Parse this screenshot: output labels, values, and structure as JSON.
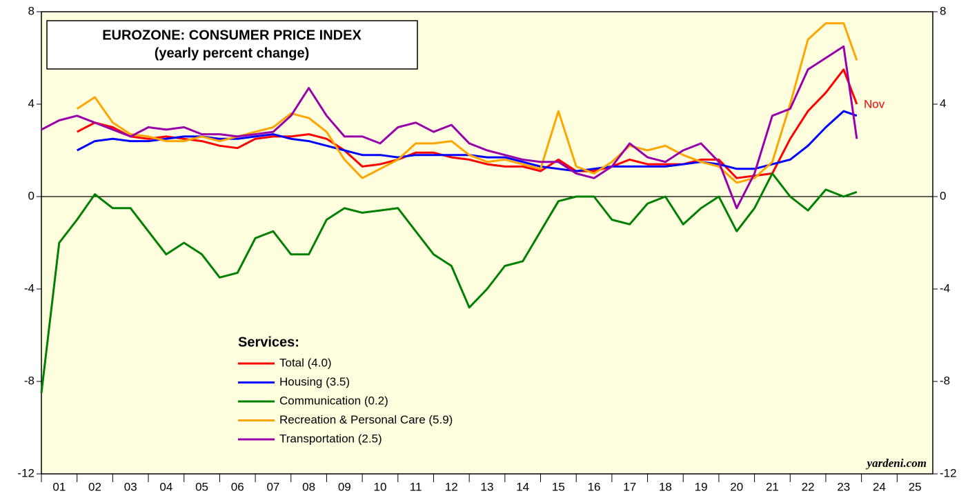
{
  "chart_data": {
    "type": "line",
    "title": "EUROZONE: CONSUMER PRICE INDEX",
    "subtitle": "(yearly percent change)",
    "legend_title": "Services:",
    "annotation": "Nov",
    "source": "yardeni.com",
    "x": [
      1.0,
      1.5,
      2.0,
      2.5,
      3.0,
      3.5,
      4.0,
      4.5,
      5.0,
      5.5,
      6.0,
      6.5,
      7.0,
      7.5,
      8.0,
      8.5,
      9.0,
      9.5,
      10.0,
      10.5,
      11.0,
      11.5,
      12.0,
      12.5,
      13.0,
      13.5,
      14.0,
      14.5,
      15.0,
      15.5,
      16.0,
      16.5,
      17.0,
      17.5,
      18.0,
      18.5,
      19.0,
      19.5,
      20.0,
      20.5,
      21.0,
      21.5,
      22.0,
      22.5,
      23.0,
      23.5,
      23.87
    ],
    "xlim": [
      1,
      26
    ],
    "xticks": [
      {
        "value": 1.5,
        "label": "01"
      },
      {
        "value": 2.5,
        "label": "02"
      },
      {
        "value": 3.5,
        "label": "03"
      },
      {
        "value": 4.5,
        "label": "04"
      },
      {
        "value": 5.5,
        "label": "05"
      },
      {
        "value": 6.5,
        "label": "06"
      },
      {
        "value": 7.5,
        "label": "07"
      },
      {
        "value": 8.5,
        "label": "08"
      },
      {
        "value": 9.5,
        "label": "09"
      },
      {
        "value": 10.5,
        "label": "10"
      },
      {
        "value": 11.5,
        "label": "11"
      },
      {
        "value": 12.5,
        "label": "12"
      },
      {
        "value": 13.5,
        "label": "13"
      },
      {
        "value": 14.5,
        "label": "14"
      },
      {
        "value": 15.5,
        "label": "15"
      },
      {
        "value": 16.5,
        "label": "16"
      },
      {
        "value": 17.5,
        "label": "17"
      },
      {
        "value": 18.5,
        "label": "18"
      },
      {
        "value": 19.5,
        "label": "19"
      },
      {
        "value": 20.5,
        "label": "20"
      },
      {
        "value": 21.5,
        "label": "21"
      },
      {
        "value": 22.5,
        "label": "22"
      },
      {
        "value": 23.5,
        "label": "23"
      },
      {
        "value": 24.5,
        "label": "24"
      },
      {
        "value": 25.5,
        "label": "25"
      }
    ],
    "ylim": [
      -12,
      8
    ],
    "yticks": [
      -12,
      -8,
      -4,
      0,
      4,
      8
    ],
    "y2lim": [
      -12,
      8
    ],
    "y2ticks": [
      -12,
      -8,
      -4,
      0,
      4,
      8
    ],
    "series": [
      {
        "name": "Total (4.0)",
        "color": "#ff0000",
        "values": [
          null,
          null,
          2.8,
          3.2,
          3.0,
          2.6,
          2.5,
          2.6,
          2.5,
          2.4,
          2.2,
          2.1,
          2.5,
          2.6,
          2.6,
          2.7,
          2.5,
          2.0,
          1.3,
          1.4,
          1.6,
          1.9,
          1.9,
          1.7,
          1.6,
          1.4,
          1.3,
          1.3,
          1.1,
          1.6,
          1.1,
          1.1,
          1.3,
          1.6,
          1.4,
          1.4,
          1.4,
          1.6,
          1.6,
          0.8,
          0.9,
          1.0,
          2.5,
          3.7,
          4.5,
          5.5,
          4.0
        ]
      },
      {
        "name": "Housing (3.5)",
        "color": "#0000ff",
        "values": [
          null,
          null,
          2.0,
          2.4,
          2.5,
          2.4,
          2.4,
          2.5,
          2.6,
          2.6,
          2.5,
          2.5,
          2.6,
          2.7,
          2.5,
          2.4,
          2.2,
          2.0,
          1.8,
          1.8,
          1.7,
          1.8,
          1.8,
          1.8,
          1.8,
          1.7,
          1.7,
          1.5,
          1.3,
          1.2,
          1.1,
          1.2,
          1.3,
          1.3,
          1.3,
          1.3,
          1.4,
          1.5,
          1.4,
          1.2,
          1.2,
          1.4,
          1.6,
          2.2,
          3.0,
          3.7,
          3.5
        ]
      },
      {
        "name": "Communication (0.2)",
        "color": "#008000",
        "values": [
          -8.5,
          -2.0,
          -1.0,
          0.1,
          -0.5,
          -0.5,
          -1.5,
          -2.5,
          -2.0,
          -2.5,
          -3.5,
          -3.3,
          -1.8,
          -1.5,
          -2.5,
          -2.5,
          -1.0,
          -0.5,
          -0.7,
          -0.6,
          -0.5,
          -1.5,
          -2.5,
          -3.0,
          -4.8,
          -4.0,
          -3.0,
          -2.8,
          -1.5,
          -0.2,
          0.0,
          0.0,
          -1.0,
          -1.2,
          -0.3,
          0.0,
          -1.2,
          -0.5,
          0.0,
          -1.5,
          -0.5,
          1.0,
          0.0,
          -0.6,
          0.3,
          0.0,
          0.2
        ]
      },
      {
        "name": "Recreation & Personal Care (5.9)",
        "color": "#ffa500",
        "values": [
          null,
          null,
          3.8,
          4.3,
          3.2,
          2.7,
          2.6,
          2.4,
          2.4,
          2.6,
          2.4,
          2.6,
          2.8,
          3.0,
          3.6,
          3.4,
          2.8,
          1.6,
          0.8,
          1.2,
          1.6,
          2.3,
          2.3,
          2.4,
          1.8,
          1.5,
          1.6,
          1.4,
          1.2,
          3.7,
          1.3,
          1.0,
          1.5,
          2.2,
          2.0,
          2.2,
          1.8,
          1.5,
          1.3,
          0.6,
          0.8,
          1.5,
          4.0,
          6.8,
          7.5,
          7.5,
          5.9
        ]
      },
      {
        "name": "Transportation (2.5)",
        "color": "#9900aa",
        "values": [
          2.9,
          3.3,
          3.5,
          3.2,
          2.9,
          2.6,
          3.0,
          2.9,
          3.0,
          2.7,
          2.7,
          2.6,
          2.7,
          2.8,
          3.5,
          4.7,
          3.5,
          2.6,
          2.6,
          2.3,
          3.0,
          3.2,
          2.8,
          3.1,
          2.3,
          2.0,
          1.8,
          1.6,
          1.5,
          1.5,
          1.0,
          0.8,
          1.3,
          2.3,
          1.7,
          1.5,
          2.0,
          2.3,
          1.5,
          -0.5,
          1.0,
          3.5,
          3.8,
          5.5,
          6.0,
          6.5,
          2.5
        ]
      }
    ]
  }
}
